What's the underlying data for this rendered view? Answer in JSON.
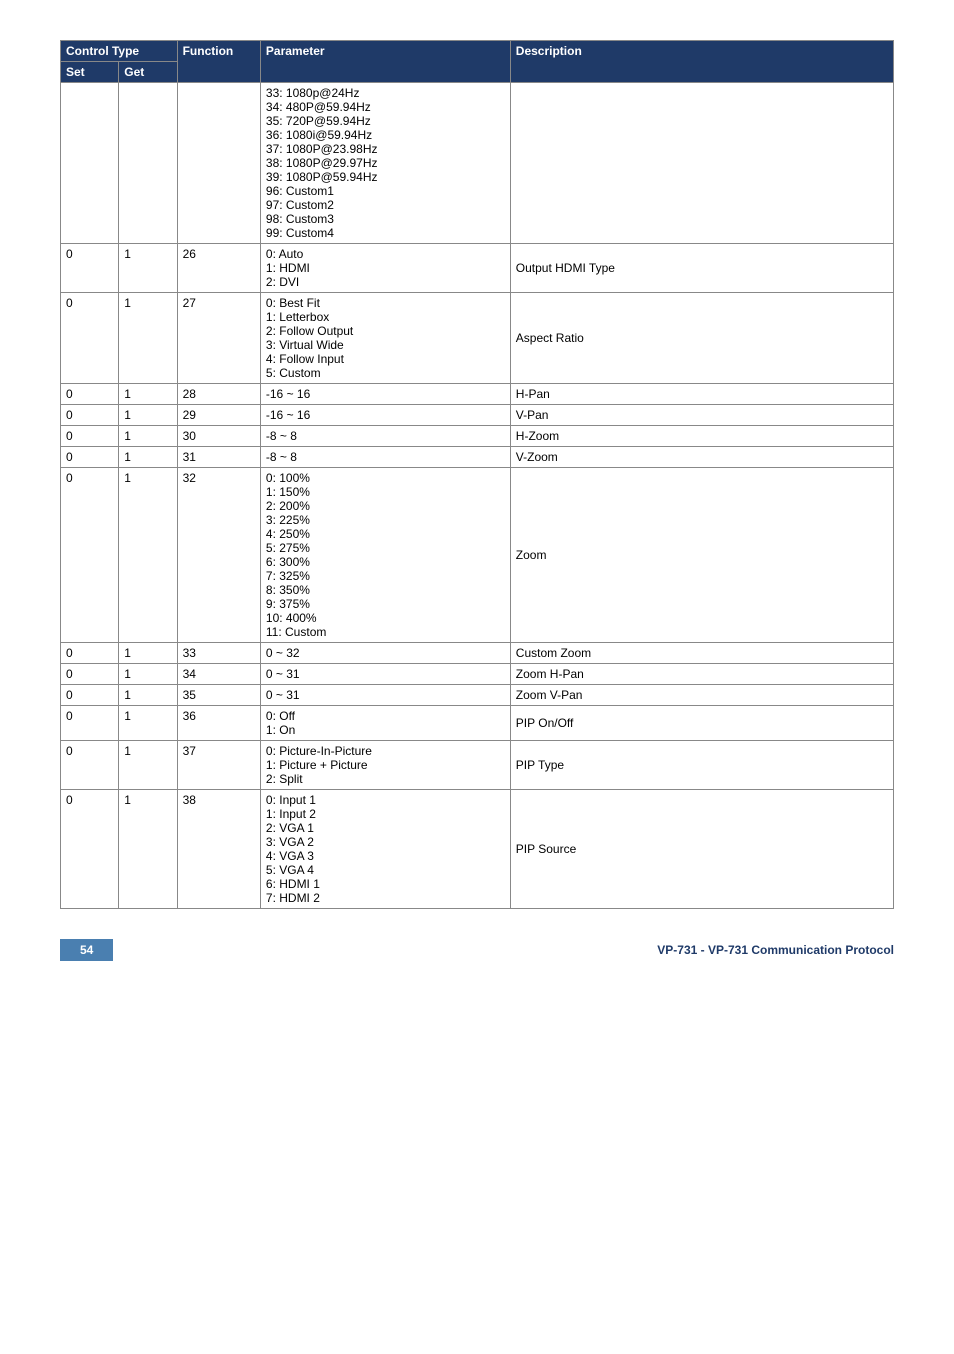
{
  "header": {
    "controlTypeSpan": "Control Type",
    "set": "Set",
    "get": "Get",
    "func": "Function",
    "param": "Parameter",
    "desc": "Description"
  },
  "rows": [
    {
      "set": "",
      "get": "",
      "func": "",
      "param": "33: 1080p@24Hz\n34: 480P@59.94Hz\n35: 720P@59.94Hz\n36: 1080i@59.94Hz\n37: 1080P@23.98Hz\n38: 1080P@29.97Hz\n39: 1080P@59.94Hz\n96: Custom1\n97: Custom2\n98: Custom3\n99: Custom4",
      "desc": ""
    },
    {
      "set": "0",
      "get": "1",
      "func": "26",
      "param": "0: Auto\n1: HDMI\n2: DVI",
      "desc": "Output HDMI Type"
    },
    {
      "set": "0",
      "get": "1",
      "func": "27",
      "param": "0: Best Fit\n1: Letterbox\n2: Follow Output\n3: Virtual Wide\n4: Follow Input\n5: Custom",
      "desc": "Aspect Ratio"
    },
    {
      "set": "0",
      "get": "1",
      "func": "28",
      "param": "-16 ~ 16",
      "desc": "H-Pan"
    },
    {
      "set": "0",
      "get": "1",
      "func": "29",
      "param": "-16 ~ 16",
      "desc": "V-Pan"
    },
    {
      "set": "0",
      "get": "1",
      "func": "30",
      "param": "-8 ~ 8",
      "desc": "H-Zoom"
    },
    {
      "set": "0",
      "get": "1",
      "func": "31",
      "param": "-8 ~ 8",
      "desc": "V-Zoom"
    },
    {
      "set": "0",
      "get": "1",
      "func": "32",
      "param": "0: 100%\n1: 150%\n2: 200%\n3: 225%\n4: 250%\n5: 275%\n6: 300%\n7: 325%\n8: 350%\n9: 375%\n10: 400%\n11: Custom",
      "desc": "Zoom"
    },
    {
      "set": "0",
      "get": "1",
      "func": "33",
      "param": "0 ~ 32",
      "desc": "Custom Zoom"
    },
    {
      "set": "0",
      "get": "1",
      "func": "34",
      "param": "0 ~ 31",
      "desc": "Zoom H-Pan"
    },
    {
      "set": "0",
      "get": "1",
      "func": "35",
      "param": "0 ~ 31",
      "desc": "Zoom V-Pan"
    },
    {
      "set": "0",
      "get": "1",
      "func": "36",
      "param": "0: Off\n1: On",
      "desc": "PIP On/Off"
    },
    {
      "set": "0",
      "get": "1",
      "func": "37",
      "param": "0: Picture-In-Picture\n1: Picture + Picture\n2: Split",
      "desc": "PIP Type"
    },
    {
      "set": "0",
      "get": "1",
      "func": "38",
      "param": "0: Input 1\n1: Input 2\n2: VGA 1\n3: VGA 2\n4: VGA 3\n5: VGA 4\n6: HDMI 1\n7: HDMI 2",
      "desc": "PIP Source"
    }
  ],
  "footer": {
    "pageNumber": "54",
    "text": "VP-731 - VP-731 Communication Protocol"
  }
}
